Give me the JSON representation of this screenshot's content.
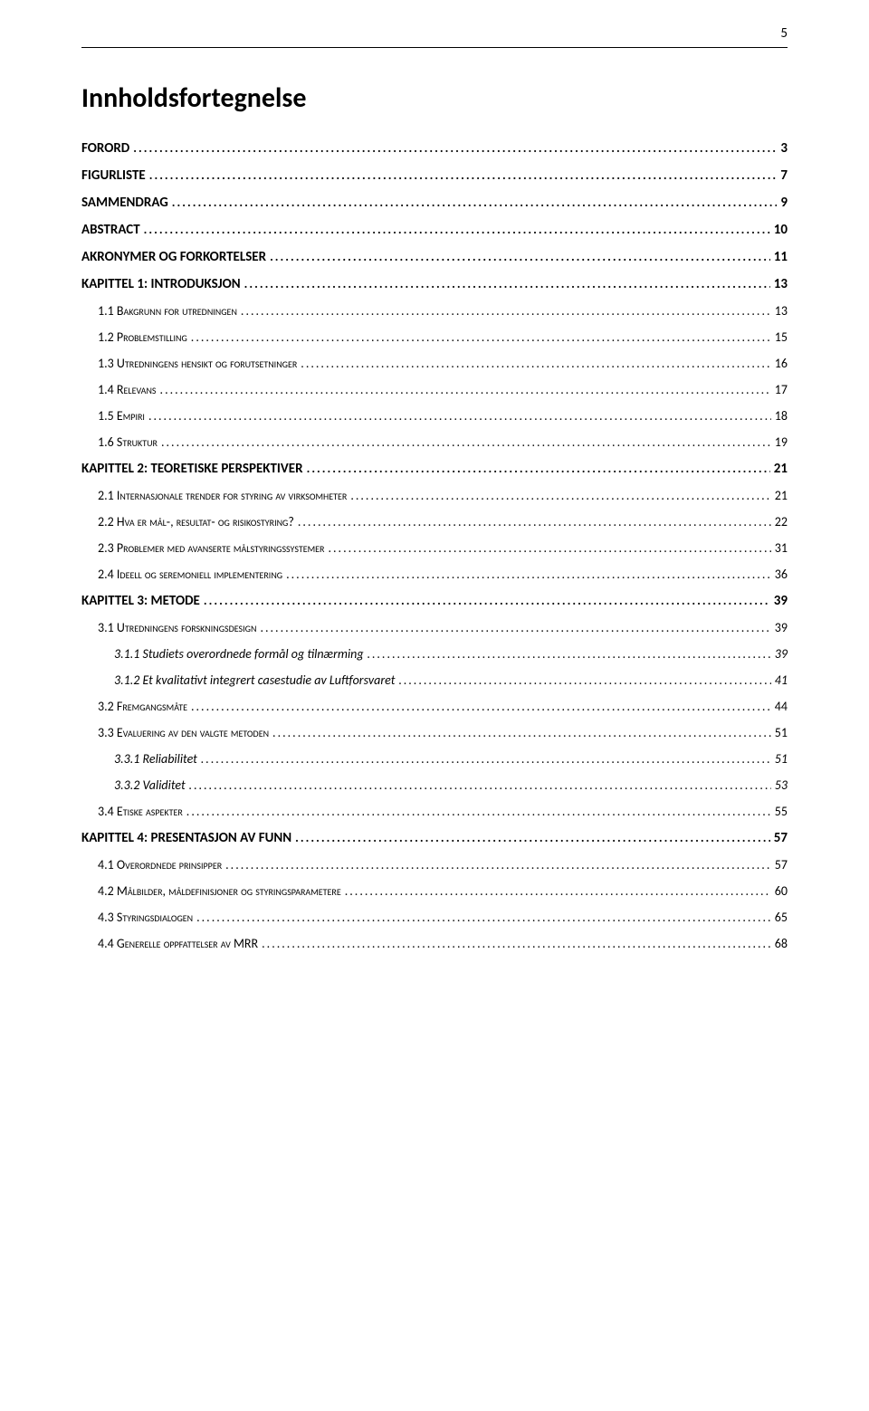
{
  "page_number": "5",
  "title": "Innholdsfortegnelse",
  "entries": [
    {
      "level": 0,
      "label": "FORORD",
      "page": "3"
    },
    {
      "level": 0,
      "label": "FIGURLISTE",
      "page": "7"
    },
    {
      "level": 0,
      "label": "SAMMENDRAG",
      "page": "9"
    },
    {
      "level": 0,
      "label": "ABSTRACT",
      "page": "10"
    },
    {
      "level": 0,
      "label": "AKRONYMER OG FORKORTELSER",
      "page": "11"
    },
    {
      "level": 0,
      "label": "KAPITTEL 1: INTRODUKSJON",
      "page": "13"
    },
    {
      "level": 1,
      "num": "1.1",
      "label": "Bakgrunn for utredningen",
      "page": "13"
    },
    {
      "level": 1,
      "num": "1.2",
      "label": "Problemstilling",
      "page": "15"
    },
    {
      "level": 1,
      "num": "1.3",
      "label": "Utredningens hensikt og forutsetninger",
      "page": "16"
    },
    {
      "level": 1,
      "num": "1.4",
      "label": "Relevans",
      "page": "17"
    },
    {
      "level": 1,
      "num": "1.5",
      "label": "Empiri",
      "page": "18"
    },
    {
      "level": 1,
      "num": "1.6",
      "label": "Struktur",
      "page": "19"
    },
    {
      "level": 0,
      "label": "KAPITTEL 2: TEORETISKE PERSPEKTIVER",
      "page": "21"
    },
    {
      "level": 1,
      "num": "2.1",
      "label": "Internasjonale trender for styring av virksomheter",
      "page": "21"
    },
    {
      "level": 1,
      "num": "2.2",
      "label": "Hva er mål-, resultat- og risikostyring?",
      "page": "22"
    },
    {
      "level": 1,
      "num": "2.3",
      "label": "Problemer med avanserte målstyringssystemer",
      "page": "31"
    },
    {
      "level": 1,
      "num": "2.4",
      "label": "Ideell og seremoniell implementering",
      "page": "36"
    },
    {
      "level": 0,
      "label": "KAPITTEL 3: METODE",
      "page": "39"
    },
    {
      "level": 1,
      "num": "3.1",
      "label": "Utredningens forskningsdesign",
      "page": "39"
    },
    {
      "level": 2,
      "num": "3.1.1",
      "label": "Studiets overordnede formål og tilnærming",
      "page": "39"
    },
    {
      "level": 2,
      "num": "3.1.2",
      "label": "Et kvalitativt integrert casestudie av Luftforsvaret",
      "page": "41"
    },
    {
      "level": 1,
      "num": "3.2",
      "label": "Fremgangsmåte",
      "page": "44"
    },
    {
      "level": 1,
      "num": "3.3",
      "label": "Evaluering av den valgte metoden",
      "page": "51"
    },
    {
      "level": 2,
      "num": "3.3.1",
      "label": "Reliabilitet",
      "page": "51"
    },
    {
      "level": 2,
      "num": "3.3.2",
      "label": "Validitet",
      "page": "53"
    },
    {
      "level": 1,
      "num": "3.4",
      "label": "Etiske aspekter",
      "page": "55"
    },
    {
      "level": 0,
      "label": "KAPITTEL 4: PRESENTASJON AV FUNN",
      "page": "57"
    },
    {
      "level": 1,
      "num": "4.1",
      "label": "Overordnede prinsipper",
      "page": "57"
    },
    {
      "level": 1,
      "num": "4.2",
      "label": "Målbilder, måldefinisjoner og styringsparametere",
      "page": "60"
    },
    {
      "level": 1,
      "num": "4.3",
      "label": "Styringsdialogen",
      "page": "65"
    },
    {
      "level": 1,
      "num": "4.4",
      "label": "Generelle oppfattelser av MRR",
      "page": "68"
    }
  ]
}
